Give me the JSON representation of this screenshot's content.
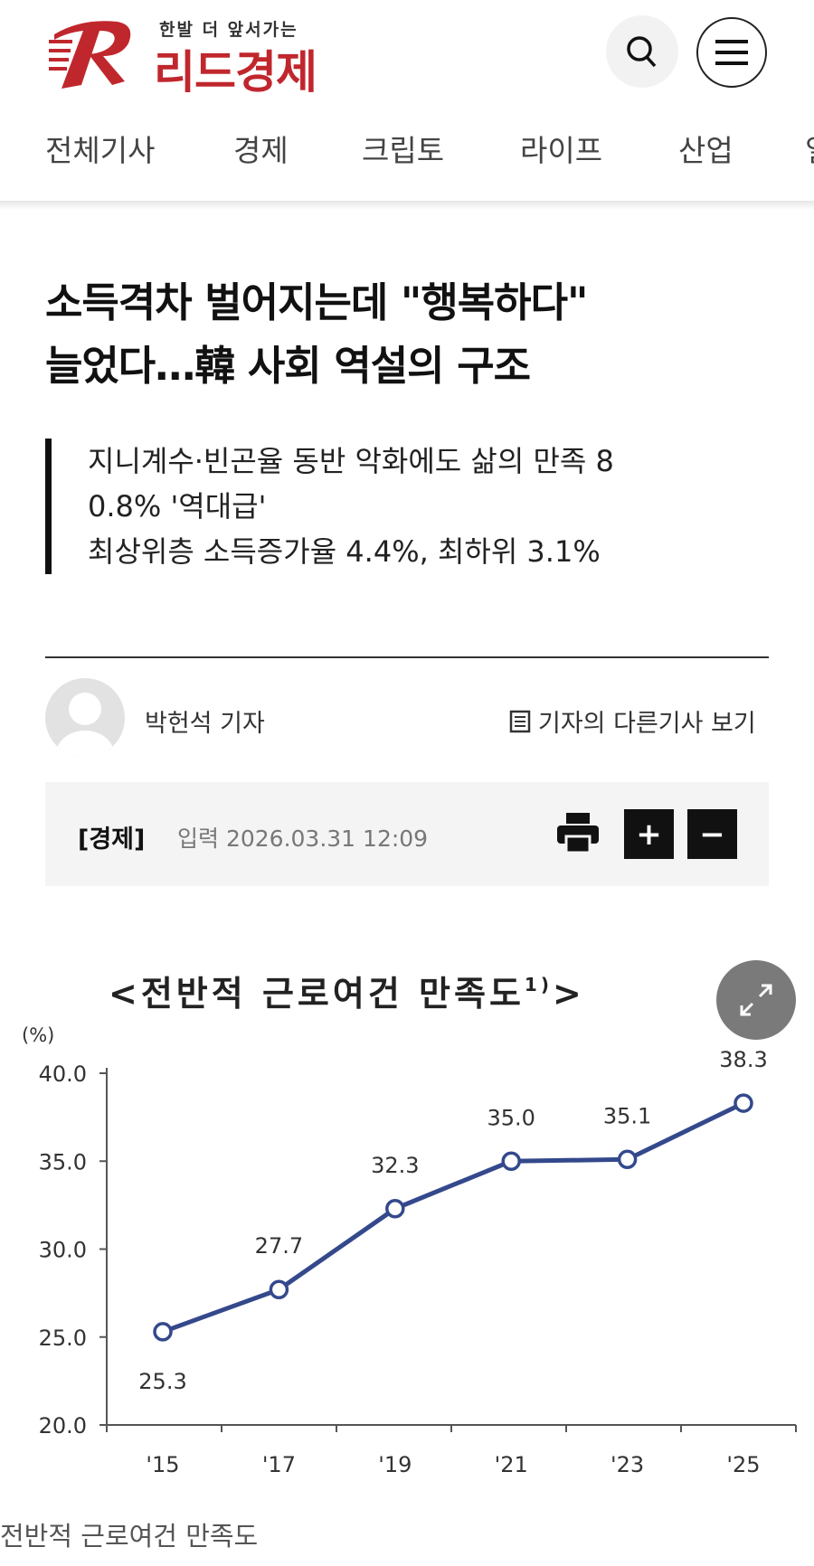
{
  "header": {
    "logo_tagline": "한발 더 앞서가는",
    "logo_name": "리드경제",
    "brand_color": "#c0272d"
  },
  "nav": [
    "전체기사",
    "경제",
    "크립토",
    "라이프",
    "산업",
    "일"
  ],
  "article": {
    "headline_line1": "소득격차 벌어지는데 \"행복하다\"",
    "headline_line2": "늘었다…韓 사회 역설의 구조",
    "subtitle_line1": "지니계수·빈곤율 동반 악화에도 삶의 만족 8",
    "subtitle_line2": "0.8% '역대급'",
    "subtitle_line3": "최상위층 소득증가율 4.4%, 최하위 3.1%",
    "author": "박헌석 기자",
    "other_articles": "기자의 다른기사 보기",
    "section": "[경제]",
    "date": "입력 2026.03.31 12:09",
    "font_plus": "+",
    "font_minus": "−",
    "image_caption": "전반적 근로여건 만족도"
  },
  "chart_data": {
    "type": "line",
    "title": "<전반적 근로여건 만족도",
    "title_sup": "1)",
    "title_end": ">",
    "ylabel": "(%)",
    "categories": [
      "'15",
      "'17",
      "'19",
      "'21",
      "'23",
      "'25"
    ],
    "values": [
      25.3,
      27.7,
      32.3,
      35.0,
      35.1,
      38.3
    ],
    "value_labels": [
      "25.3",
      "27.7",
      "32.3",
      "35.0",
      "35.1",
      "38.3"
    ],
    "yticks": [
      "20.0",
      "25.0",
      "30.0",
      "35.0",
      "40.0"
    ],
    "ylim": [
      20,
      40
    ],
    "grid": false,
    "color": "#34498c"
  }
}
